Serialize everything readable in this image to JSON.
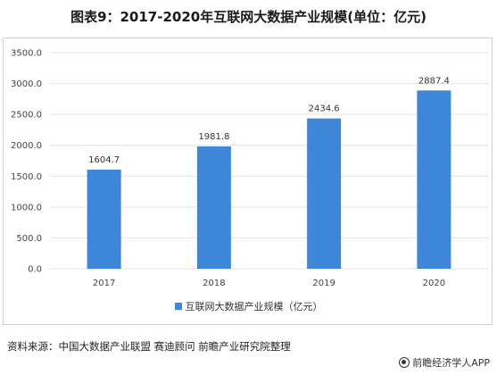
{
  "title": "图表9：2017-2020年互联网大数据产业规模(单位：亿元)",
  "chart_data": {
    "type": "bar",
    "categories": [
      "2017",
      "2018",
      "2019",
      "2020"
    ],
    "series": [
      {
        "name": "互联网大数据产业规模（亿元）",
        "values": [
          1604.7,
          1981.8,
          2434.6,
          2887.4
        ]
      }
    ],
    "data_labels": [
      "1604.7",
      "1981.8",
      "2434.6",
      "2887.4"
    ],
    "ylim": [
      0,
      3500
    ],
    "yticks": [
      "0.0",
      "500.0",
      "1000.0",
      "1500.0",
      "2000.0",
      "2500.0",
      "3000.0",
      "3500.0"
    ],
    "xlabel": "",
    "ylabel": "",
    "grid": true,
    "legend_position": "bottom",
    "colors": {
      "bar": "#3d86d8",
      "grid": "#e3e3e3"
    }
  },
  "legend": {
    "label": "互联网大数据产业规模（亿元）"
  },
  "source": {
    "text": "资料来源：中国大数据产业联盟 赛迪顾问 前瞻产业研究院整理"
  },
  "watermark": {
    "brand": "前瞻经济学人APP",
    "icon": "qianzhan-logo-icon"
  }
}
